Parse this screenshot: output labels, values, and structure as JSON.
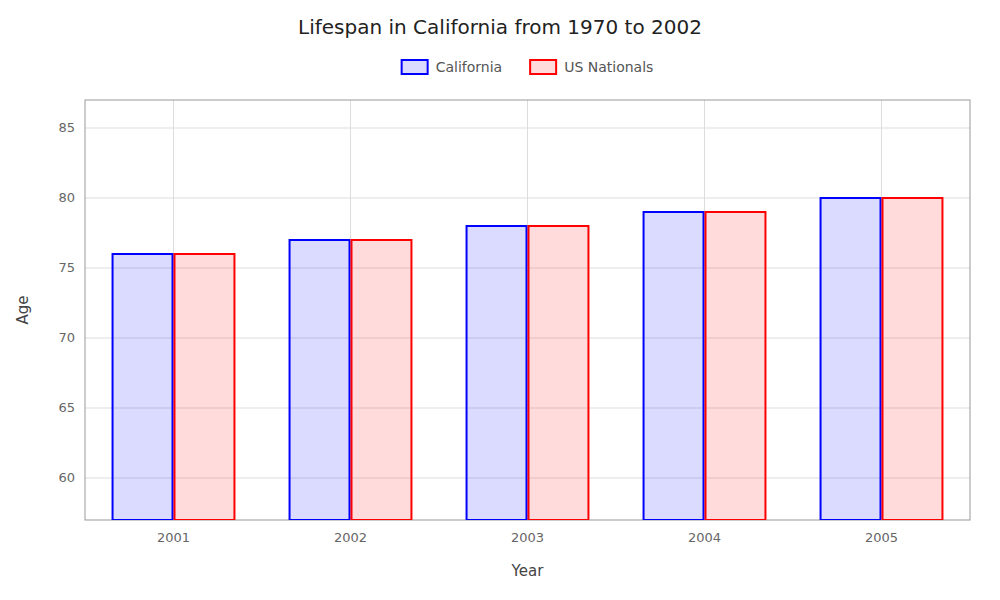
{
  "chart_data": {
    "type": "bar",
    "title": "Lifespan in California from 1970 to 2002",
    "x_label": "Year",
    "y_label": "Age",
    "categories": [
      "2001",
      "2002",
      "2003",
      "2004",
      "2005"
    ],
    "series": [
      {
        "name": "California",
        "color": "#0000ff",
        "values": [
          76,
          77,
          78,
          79,
          80
        ]
      },
      {
        "name": "US Nationals",
        "color": "#ff0000",
        "values": [
          76,
          77,
          78,
          79,
          80
        ]
      }
    ],
    "ylim": [
      57,
      87
    ],
    "yticks": [
      60,
      65,
      70,
      75,
      80,
      85
    ],
    "grid": true,
    "legend": "top"
  }
}
